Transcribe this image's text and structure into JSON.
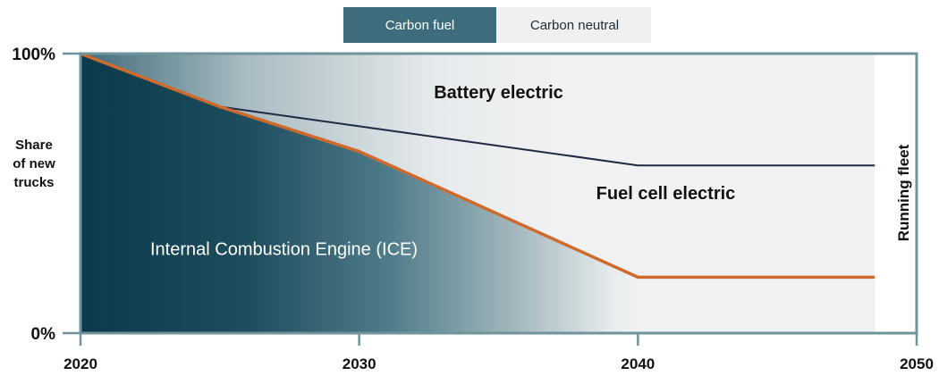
{
  "legend": {
    "carbon_fuel": "Carbon fuel",
    "carbon_neutral": "Carbon neutral"
  },
  "colors": {
    "ice_dark": "#0b3a4a",
    "neutral_fill": "#f0f1f2",
    "axis": "#6f949c",
    "orange_line": "#d06a2c",
    "navy_line": "#1c2a44"
  },
  "chart_data": {
    "type": "area",
    "ylabel": "Share of new trucks",
    "right_label": "Running fleet",
    "x_ticks": [
      "2020",
      "2030",
      "2040",
      "2050"
    ],
    "y_ticks": [
      "100%",
      "0%"
    ],
    "xlim": [
      2020,
      2050
    ],
    "ylim": [
      0,
      100
    ],
    "boundaries": [
      {
        "name": "ICE upper boundary",
        "x": [
          2020,
          2025,
          2030,
          2040,
          2048.5
        ],
        "y": [
          100,
          81,
          65,
          20,
          20
        ]
      },
      {
        "name": "Fuel cell upper boundary",
        "x": [
          2025,
          2030,
          2040,
          2048.5
        ],
        "y": [
          81,
          74,
          60,
          60
        ]
      }
    ],
    "regions": [
      {
        "label": "Battery electric",
        "x": 2035,
        "y": 84
      },
      {
        "label": "Fuel cell electric",
        "x": 2041,
        "y": 48
      },
      {
        "label": "Internal Combustion Engine (ICE)",
        "x": 2027.3,
        "y": 28
      }
    ]
  }
}
